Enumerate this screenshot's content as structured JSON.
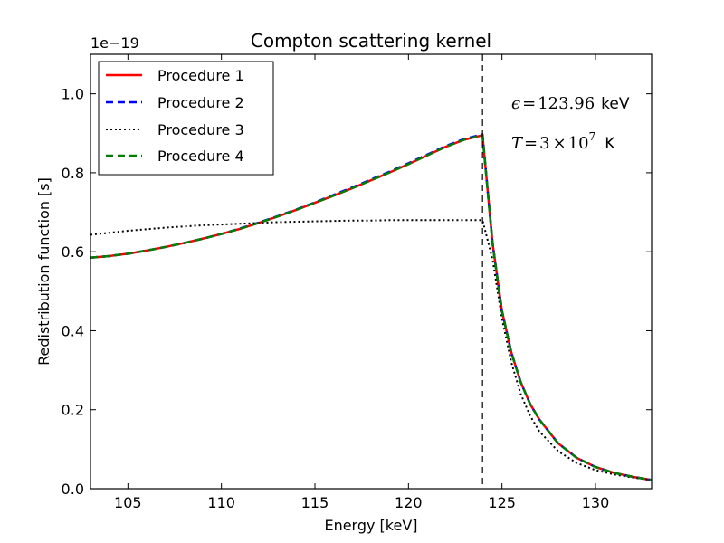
{
  "chart_data": {
    "type": "line",
    "title": "Compton scattering kernel",
    "xlabel": "Energy [keV]",
    "ylabel": "Redistribution function [s]",
    "offset_label": "1e−19",
    "xlim": [
      103,
      133
    ],
    "ylim": [
      0.0,
      1.1
    ],
    "xticks": [
      105,
      110,
      115,
      120,
      125,
      130
    ],
    "xtick_labels": [
      "105",
      "110",
      "115",
      "120",
      "125",
      "130"
    ],
    "yticks": [
      0.0,
      0.2,
      0.4,
      0.6,
      0.8,
      1.0
    ],
    "ytick_labels": [
      "0.0",
      "0.2",
      "0.4",
      "0.6",
      "0.8",
      "1.0"
    ],
    "vline_x": 123.96,
    "legend_position": "top-left",
    "annotations": {
      "epsilon": {
        "symbol": "ϵ",
        "equals": "=",
        "value": "123.96",
        "unit": "keV"
      },
      "temperature": {
        "symbol": "T",
        "equals": "=",
        "mantissa": "3",
        "times": "×",
        "base": "10",
        "exponent": "7",
        "unit": "K"
      }
    },
    "series": [
      {
        "name": "Procedure 1",
        "color": "#ff0000",
        "style": "solid",
        "x": [
          103,
          104,
          105,
          106,
          107,
          108,
          109,
          110,
          111,
          112,
          113,
          114,
          115,
          116,
          117,
          118,
          119,
          120,
          121,
          122,
          123,
          123.96,
          124.5,
          125,
          125.5,
          126,
          126.5,
          127,
          128,
          129,
          130,
          131,
          132,
          133
        ],
        "y": [
          0.585,
          0.589,
          0.595,
          0.603,
          0.612,
          0.622,
          0.633,
          0.645,
          0.658,
          0.673,
          0.689,
          0.706,
          0.724,
          0.742,
          0.761,
          0.781,
          0.801,
          0.822,
          0.844,
          0.866,
          0.884,
          0.895,
          0.62,
          0.45,
          0.345,
          0.27,
          0.215,
          0.175,
          0.115,
          0.078,
          0.055,
          0.04,
          0.03,
          0.022
        ]
      },
      {
        "name": "Procedure 2",
        "color": "#0000ff",
        "style": "dashed",
        "x": [
          103,
          104,
          105,
          106,
          107,
          108,
          109,
          110,
          111,
          112,
          113,
          114,
          115,
          116,
          117,
          118,
          119,
          120,
          121,
          122,
          123,
          123.96,
          124.5,
          125,
          125.5,
          126,
          126.5,
          127,
          128,
          129,
          130,
          131,
          132,
          133
        ],
        "y": [
          0.585,
          0.589,
          0.595,
          0.603,
          0.612,
          0.622,
          0.633,
          0.645,
          0.659,
          0.674,
          0.69,
          0.707,
          0.725,
          0.744,
          0.763,
          0.783,
          0.803,
          0.824,
          0.846,
          0.868,
          0.886,
          0.897,
          0.62,
          0.45,
          0.345,
          0.27,
          0.215,
          0.175,
          0.115,
          0.078,
          0.055,
          0.04,
          0.03,
          0.022
        ]
      },
      {
        "name": "Procedure 3",
        "color": "#000000",
        "style": "dotted",
        "x": [
          103,
          104,
          105,
          106,
          107,
          108,
          109,
          110,
          111,
          112,
          113,
          114,
          115,
          116,
          117,
          118,
          119,
          120,
          121,
          122,
          123,
          123.96,
          124.5,
          125,
          125.5,
          126,
          126.5,
          127,
          128,
          129,
          130,
          131,
          132,
          133
        ],
        "y": [
          0.643,
          0.648,
          0.653,
          0.657,
          0.661,
          0.664,
          0.667,
          0.669,
          0.671,
          0.673,
          0.675,
          0.676,
          0.677,
          0.678,
          0.679,
          0.679,
          0.68,
          0.68,
          0.68,
          0.68,
          0.68,
          0.68,
          0.58,
          0.43,
          0.32,
          0.24,
          0.185,
          0.145,
          0.095,
          0.065,
          0.047,
          0.036,
          0.028,
          0.022
        ]
      },
      {
        "name": "Procedure 4",
        "color": "#008000",
        "style": "dashed",
        "x": [
          103,
          104,
          105,
          106,
          107,
          108,
          109,
          110,
          111,
          112,
          113,
          114,
          115,
          116,
          117,
          118,
          119,
          120,
          121,
          122,
          123,
          123.96,
          124.5,
          125,
          125.5,
          126,
          126.5,
          127,
          128,
          129,
          130,
          131,
          132,
          133
        ],
        "y": [
          0.585,
          0.589,
          0.595,
          0.603,
          0.612,
          0.622,
          0.633,
          0.645,
          0.658,
          0.673,
          0.689,
          0.706,
          0.724,
          0.742,
          0.761,
          0.781,
          0.801,
          0.822,
          0.844,
          0.866,
          0.884,
          0.895,
          0.62,
          0.45,
          0.345,
          0.27,
          0.215,
          0.175,
          0.115,
          0.078,
          0.055,
          0.04,
          0.03,
          0.022
        ]
      }
    ]
  }
}
